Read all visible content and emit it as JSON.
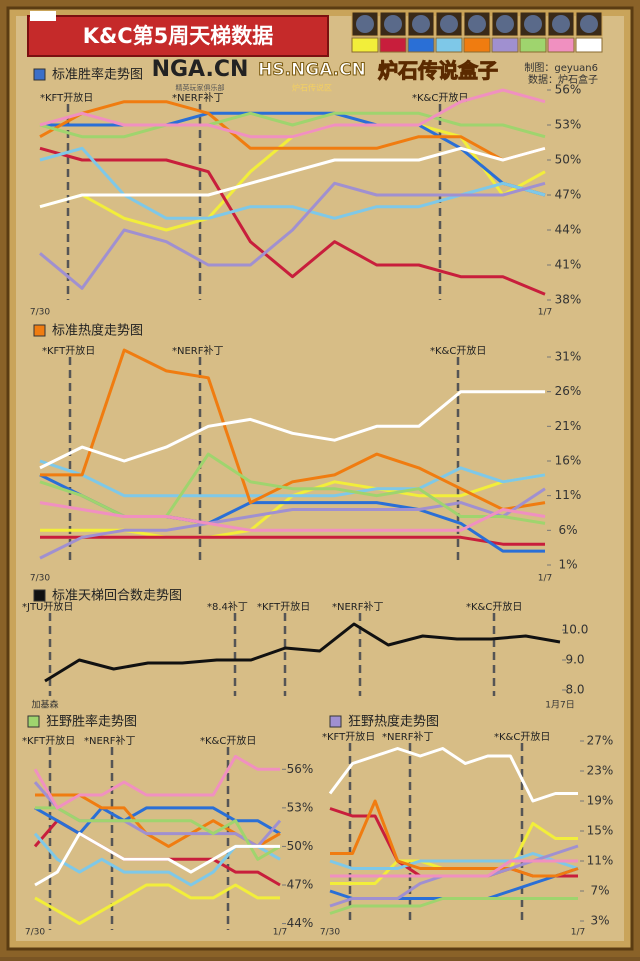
{
  "header": {
    "title": "K&C第5周天梯数据",
    "credit_author": "制图：geyuan6",
    "credit_source": "数据：炉石盒子",
    "logos": [
      "NGA.CN",
      "HS.NGA.CN",
      "炉石传说盒子"
    ],
    "logo_subs": [
      "精英玩家俱乐部",
      "炉石传说区"
    ]
  },
  "chart_data": [
    {
      "type": "line",
      "title": "标准胜率走势图",
      "categories": [
        "7/30",
        null,
        null,
        null,
        null,
        null,
        null,
        null,
        null,
        null,
        null,
        null,
        "1/7"
      ],
      "annotations": [
        "*KFT开放日",
        "*NERF补丁",
        "*K&C开放日"
      ],
      "ylim": [
        38,
        56
      ],
      "yticks": [
        {
          "value": 38,
          "label": "38%"
        },
        {
          "value": 41,
          "label": "41%"
        },
        {
          "value": 44,
          "label": "44%"
        },
        {
          "value": 47,
          "label": "47%"
        },
        {
          "value": 50,
          "label": "50%"
        },
        {
          "value": 53,
          "label": "53%"
        },
        {
          "value": 56,
          "label": "56%"
        }
      ],
      "series": [
        {
          "color": "#f2ee3a",
          "values": [
            46,
            47,
            45,
            44,
            45,
            49,
            52,
            53,
            53,
            53,
            52,
            47,
            49
          ]
        },
        {
          "color": "#c81e3c",
          "values": [
            51,
            50,
            50,
            50,
            49,
            43,
            40,
            43,
            41,
            41,
            40,
            40,
            38.5
          ]
        },
        {
          "color": "#2a6fd6",
          "values": [
            53,
            53,
            53,
            53,
            54,
            54,
            54,
            54,
            53,
            53,
            51,
            48,
            47
          ]
        },
        {
          "color": "#7ec8e8",
          "values": [
            50,
            51,
            47,
            45,
            45,
            46,
            46,
            45,
            46,
            46,
            47,
            48,
            47
          ]
        },
        {
          "color": "#f07c10",
          "values": [
            52,
            54,
            55,
            55,
            54,
            51,
            51,
            51,
            51,
            52,
            52,
            50,
            51
          ]
        },
        {
          "color": "#a090d0",
          "values": [
            42,
            39,
            44,
            43,
            41,
            41,
            44,
            48,
            47,
            47,
            47,
            47,
            48
          ]
        },
        {
          "color": "#9fd46e",
          "values": [
            53,
            52,
            52,
            53,
            53,
            54,
            53,
            54,
            54,
            54,
            53,
            53,
            52
          ]
        },
        {
          "color": "#f090c0",
          "values": [
            53,
            54,
            53,
            53,
            53,
            52,
            52,
            53,
            53,
            53,
            55,
            56,
            55
          ]
        },
        {
          "color": "#ffffff",
          "values": [
            46,
            47,
            47,
            47,
            47,
            48,
            49,
            50,
            50,
            50,
            51,
            50,
            51
          ]
        }
      ]
    },
    {
      "type": "line",
      "title": "标准热度走势图",
      "categories": [
        "7/30",
        null,
        null,
        null,
        null,
        null,
        null,
        null,
        null,
        null,
        null,
        null,
        "1/7"
      ],
      "annotations": [
        "*KFT开放日",
        "*NERF补丁",
        "*K&C开放日"
      ],
      "ylim": [
        1,
        31
      ],
      "yticks": [
        {
          "value": 1,
          "label": "1%"
        },
        {
          "value": 6,
          "label": "6%"
        },
        {
          "value": 11,
          "label": "11%"
        },
        {
          "value": 16,
          "label": "16%"
        },
        {
          "value": 21,
          "label": "21%"
        },
        {
          "value": 26,
          "label": "26%"
        },
        {
          "value": 31,
          "label": "31%"
        }
      ],
      "series": [
        {
          "color": "#f2ee3a",
          "values": [
            6,
            6,
            6,
            5,
            5,
            6,
            11,
            13,
            12,
            11,
            11,
            13,
            14
          ]
        },
        {
          "color": "#c81e3c",
          "values": [
            5,
            5,
            5,
            5,
            5,
            5,
            5,
            5,
            5,
            5,
            5,
            4,
            4
          ]
        },
        {
          "color": "#2a6fd6",
          "values": [
            14,
            11,
            8,
            8,
            7,
            10,
            10,
            10,
            10,
            9,
            7,
            3,
            3
          ]
        },
        {
          "color": "#7ec8e8",
          "values": [
            16,
            14,
            11,
            11,
            11,
            11,
            11,
            11,
            12,
            12,
            15,
            13,
            14
          ]
        },
        {
          "color": "#f07c10",
          "values": [
            14,
            14,
            32,
            29,
            28,
            10,
            13,
            14,
            17,
            15,
            12,
            9,
            10
          ]
        },
        {
          "color": "#a090d0",
          "values": [
            2,
            5,
            6,
            6,
            7,
            8,
            9,
            9,
            9,
            9,
            10,
            8,
            12
          ]
        },
        {
          "color": "#9fd46e",
          "values": [
            13,
            11,
            8,
            8,
            17,
            13,
            12,
            12,
            11,
            12,
            8,
            8,
            7
          ]
        },
        {
          "color": "#f090c0",
          "values": [
            10,
            9,
            8,
            8,
            7,
            6,
            6,
            6,
            6,
            6,
            6,
            9,
            8
          ]
        },
        {
          "color": "#ffffff",
          "values": [
            15,
            18,
            16,
            18,
            21,
            22,
            20,
            19,
            21,
            21,
            26,
            26,
            26
          ]
        }
      ]
    },
    {
      "type": "line",
      "title": "标准天梯回合数走势图",
      "categories": [
        "加基森",
        null,
        null,
        null,
        null,
        null,
        null,
        null,
        null,
        null,
        null,
        null,
        null,
        null,
        null,
        "1月7日"
      ],
      "annotations": [
        "*JTU开放日",
        "*8.4补丁",
        "*KFT开放日",
        "*NERF补丁",
        "*K&C开放日"
      ],
      "ylim": [
        7.8,
        10.4
      ],
      "yticks": [
        {
          "value": 8,
          "label": "8.0"
        },
        {
          "value": 9,
          "label": "9.0"
        },
        {
          "value": 10,
          "label": "10.0"
        }
      ],
      "series": [
        {
          "color": "#111111",
          "values": [
            8.3,
            9.0,
            8.7,
            8.9,
            8.9,
            9.0,
            9.0,
            9.4,
            9.3,
            10.2,
            9.5,
            9.8,
            9.7,
            9.7,
            9.8,
            9.6
          ]
        }
      ]
    },
    {
      "type": "line",
      "title": "狂野胜率走势图",
      "categories": [
        "7/30",
        null,
        null,
        null,
        null,
        null,
        null,
        null,
        null,
        null,
        null,
        "1/7"
      ],
      "annotations": [
        "*KFT开放日",
        "*NERF补丁",
        "*K&C开放日"
      ],
      "ylim": [
        43.5,
        57.5
      ],
      "yticks": [
        {
          "value": 44,
          "label": "44%"
        },
        {
          "value": 47,
          "label": "47%"
        },
        {
          "value": 50,
          "label": "50%"
        },
        {
          "value": 53,
          "label": "53%"
        },
        {
          "value": 56,
          "label": "56%"
        }
      ],
      "series": [
        {
          "color": "#f2ee3a",
          "values": [
            46,
            45,
            44,
            45,
            46,
            47,
            47,
            46,
            46,
            47,
            46,
            46
          ]
        },
        {
          "color": "#c81e3c",
          "values": [
            50,
            52,
            51,
            50,
            49,
            49,
            49,
            49,
            49,
            48,
            48,
            47
          ]
        },
        {
          "color": "#2a6fd6",
          "values": [
            53,
            52,
            51,
            53,
            52,
            53,
            53,
            53,
            53,
            52,
            52,
            51
          ]
        },
        {
          "color": "#7ec8e8",
          "values": [
            51,
            49,
            48,
            49,
            48,
            48,
            48,
            47,
            48,
            50,
            50,
            49
          ]
        },
        {
          "color": "#f07c10",
          "values": [
            54,
            54,
            54,
            53,
            53,
            51,
            50,
            51,
            52,
            51,
            50,
            51
          ]
        },
        {
          "color": "#a090d0",
          "values": [
            55,
            53,
            52,
            52,
            52,
            51,
            51,
            51,
            51,
            51,
            50,
            52
          ]
        },
        {
          "color": "#9fd46e",
          "values": [
            53,
            53,
            52,
            52,
            52,
            52,
            52,
            52,
            51,
            52,
            49,
            50
          ]
        },
        {
          "color": "#f090c0",
          "values": [
            56,
            53,
            54,
            54,
            55,
            54,
            54,
            54,
            54,
            57,
            56,
            56
          ]
        },
        {
          "color": "#ffffff",
          "values": [
            47,
            48,
            51,
            50,
            49,
            49,
            49,
            48,
            49,
            50,
            50,
            50
          ]
        }
      ]
    },
    {
      "type": "line",
      "title": "狂野热度走势图",
      "categories": [
        "7/30",
        null,
        null,
        null,
        null,
        null,
        null,
        null,
        null,
        null,
        null,
        "1/7"
      ],
      "annotations": [
        "*KFT开放日",
        "*NERF补丁",
        "*K&C开放日"
      ],
      "ylim": [
        3,
        27
      ],
      "yticks": [
        {
          "value": 3,
          "label": "3%"
        },
        {
          "value": 7,
          "label": "7%"
        },
        {
          "value": 11,
          "label": "11%"
        },
        {
          "value": 15,
          "label": "15%"
        },
        {
          "value": 19,
          "label": "19%"
        },
        {
          "value": 23,
          "label": "23%"
        },
        {
          "value": 27,
          "label": "27%"
        }
      ],
      "series": [
        {
          "color": "#f2ee3a",
          "values": [
            8,
            8,
            8,
            11,
            11,
            10,
            10,
            10,
            10,
            16,
            14,
            14
          ]
        },
        {
          "color": "#c81e3c",
          "values": [
            18,
            17,
            17,
            11,
            9,
            9,
            9,
            9,
            10,
            9,
            9,
            9
          ]
        },
        {
          "color": "#2a6fd6",
          "values": [
            7,
            6,
            6,
            6,
            6,
            6,
            6,
            6,
            7,
            8,
            9,
            10
          ]
        },
        {
          "color": "#7ec8e8",
          "values": [
            11,
            10,
            10,
            10,
            11,
            11,
            11,
            11,
            11,
            12,
            11,
            10
          ]
        },
        {
          "color": "#f07c10",
          "values": [
            12,
            12,
            19,
            11,
            10,
            10,
            10,
            10,
            10,
            9,
            9,
            10
          ]
        },
        {
          "color": "#a090d0",
          "values": [
            5,
            6,
            6,
            6,
            8,
            9,
            9,
            9,
            10,
            11,
            12,
            13
          ]
        },
        {
          "color": "#9fd46e",
          "values": [
            4,
            5,
            5,
            5,
            5,
            6,
            6,
            6,
            6,
            6,
            6,
            6
          ]
        },
        {
          "color": "#f090c0",
          "values": [
            9,
            9,
            9,
            9,
            9,
            9,
            9,
            9,
            11,
            11,
            11,
            11
          ]
        },
        {
          "color": "#ffffff",
          "values": [
            20,
            24,
            25,
            26,
            25,
            26,
            24,
            25,
            25,
            19,
            20,
            20
          ]
        }
      ]
    }
  ]
}
